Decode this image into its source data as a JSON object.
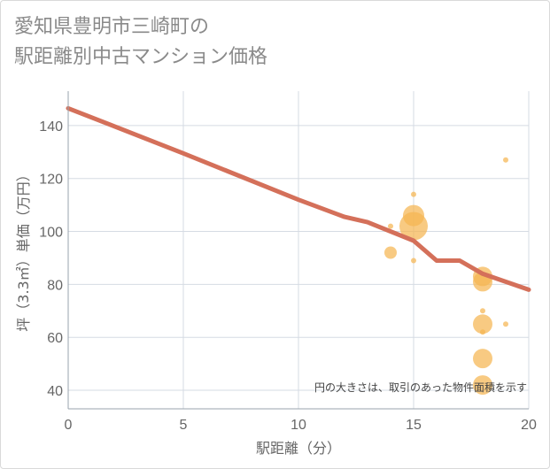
{
  "title_lines": [
    "愛知県豊明市三崎町の",
    "駅距離別中古マンション価格"
  ],
  "chart_data": {
    "type": "scatter",
    "title": "愛知県豊明市三崎町の駅距離別中古マンション価格",
    "xlabel": "駅距離（分）",
    "ylabel": "坪（3.3㎡）単価（万円）",
    "xlim": [
      0,
      20
    ],
    "ylim": [
      33,
      153
    ],
    "xticks": [
      0,
      5,
      10,
      15,
      20
    ],
    "yticks": [
      40,
      60,
      80,
      100,
      120,
      140
    ],
    "annotation": "円の大きさは、取引のあった物件面積を示す",
    "trend_line": {
      "name": "trend",
      "color": "#d4705a",
      "points": [
        [
          0,
          146.5
        ],
        [
          5,
          129.5
        ],
        [
          10,
          112
        ],
        [
          12,
          105.5
        ],
        [
          13,
          103.5
        ],
        [
          15,
          96.5
        ],
        [
          16,
          89
        ],
        [
          17,
          89
        ],
        [
          18,
          84
        ],
        [
          20,
          78
        ]
      ]
    },
    "bubbles": {
      "color": "#f5b552",
      "points": [
        {
          "x": 14,
          "y": 102,
          "size": 3
        },
        {
          "x": 14,
          "y": 92,
          "size": 7
        },
        {
          "x": 15,
          "y": 114,
          "size": 3
        },
        {
          "x": 15,
          "y": 106,
          "size": 12
        },
        {
          "x": 15,
          "y": 102,
          "size": 16
        },
        {
          "x": 15,
          "y": 89,
          "size": 3
        },
        {
          "x": 18,
          "y": 83,
          "size": 11
        },
        {
          "x": 18,
          "y": 81,
          "size": 11
        },
        {
          "x": 18,
          "y": 70,
          "size": 3
        },
        {
          "x": 18,
          "y": 65,
          "size": 11
        },
        {
          "x": 18,
          "y": 62,
          "size": 3
        },
        {
          "x": 18,
          "y": 52,
          "size": 11
        },
        {
          "x": 18,
          "y": 42,
          "size": 11
        },
        {
          "x": 19,
          "y": 127,
          "size": 3
        },
        {
          "x": 19,
          "y": 65,
          "size": 3
        }
      ]
    }
  }
}
